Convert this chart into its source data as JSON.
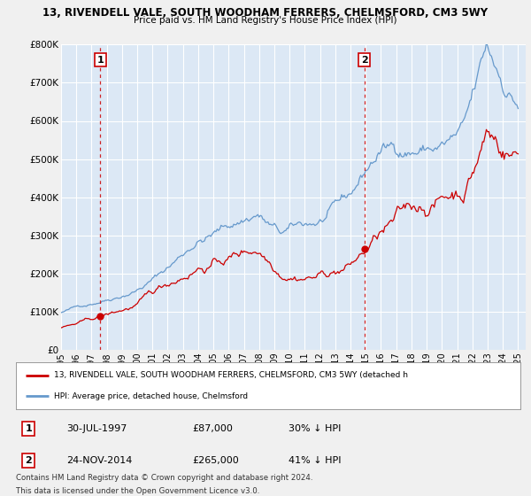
{
  "title": "13, RIVENDELL VALE, SOUTH WOODHAM FERRERS, CHELMSFORD, CM3 5WY",
  "subtitle": "Price paid vs. HM Land Registry's House Price Index (HPI)",
  "legend_label_red": "13, RIVENDELL VALE, SOUTH WOODHAM FERRERS, CHELMSFORD, CM3 5WY (detached h",
  "legend_label_blue": "HPI: Average price, detached house, Chelmsford",
  "table_row1": [
    "1",
    "30-JUL-1997",
    "£87,000",
    "30% ↓ HPI"
  ],
  "table_row2": [
    "2",
    "24-NOV-2014",
    "£265,000",
    "41% ↓ HPI"
  ],
  "footnote1": "Contains HM Land Registry data © Crown copyright and database right 2024.",
  "footnote2": "This data is licensed under the Open Government Licence v3.0.",
  "marker1_x": 1997.58,
  "marker1_y": 87000,
  "marker2_x": 2014.9,
  "marker2_y": 265000,
  "vline1_x": 1997.58,
  "vline2_x": 2014.9,
  "xlim": [
    1995.0,
    2025.5
  ],
  "ylim": [
    0,
    800000
  ],
  "yticks": [
    0,
    100000,
    200000,
    300000,
    400000,
    500000,
    600000,
    700000,
    800000
  ],
  "ytick_labels": [
    "£0",
    "£100K",
    "£200K",
    "£300K",
    "£400K",
    "£500K",
    "£600K",
    "£700K",
    "£800K"
  ],
  "xtick_years": [
    1995,
    1996,
    1997,
    1998,
    1999,
    2000,
    2001,
    2002,
    2003,
    2004,
    2005,
    2006,
    2007,
    2008,
    2009,
    2010,
    2011,
    2012,
    2013,
    2014,
    2015,
    2016,
    2017,
    2018,
    2019,
    2020,
    2021,
    2022,
    2023,
    2024,
    2025
  ],
  "red_color": "#cc0000",
  "blue_color": "#6699cc",
  "plot_bg": "#dce8f5",
  "grid_color": "#ffffff",
  "label_box_border": "#cc0000",
  "fig_bg": "#f0f0f0"
}
